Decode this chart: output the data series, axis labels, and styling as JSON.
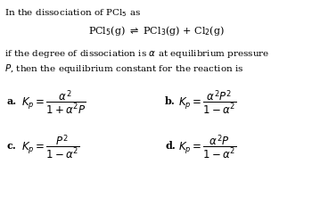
{
  "bg_color": "#ffffff",
  "text_color": "#000000",
  "fig_width": 3.5,
  "fig_height": 2.4,
  "dpi": 100,
  "intro_line1": "In the dissociation of PCl$_5$ as",
  "reaction": "PCl$_5$(g) $\\rightleftharpoons$ PCl$_3$(g) + Cl$_2$(g)",
  "intro_line2": "if the degree of dissociation is $\\alpha$ at equilibrium pressure",
  "intro_line3": "$P$, then the equilibrium constant for the reaction is",
  "opt_a_label": "a.",
  "opt_a_expr": "$K_p = \\dfrac{\\alpha^2}{1+\\alpha^2 P}$",
  "opt_b_label": "b.",
  "opt_b_expr": "$K_p = \\dfrac{\\alpha^2 P^2}{1-\\alpha^2}$",
  "opt_c_label": "c.",
  "opt_c_expr": "$K_p = \\dfrac{P^2}{1-\\alpha^2}$",
  "opt_d_label": "d.",
  "opt_d_expr": "$K_p = \\dfrac{\\alpha^2 P}{1-\\alpha^2}$",
  "fontsize_body": 7.5,
  "fontsize_option_label": 8.0,
  "fontsize_option_expr": 8.5
}
